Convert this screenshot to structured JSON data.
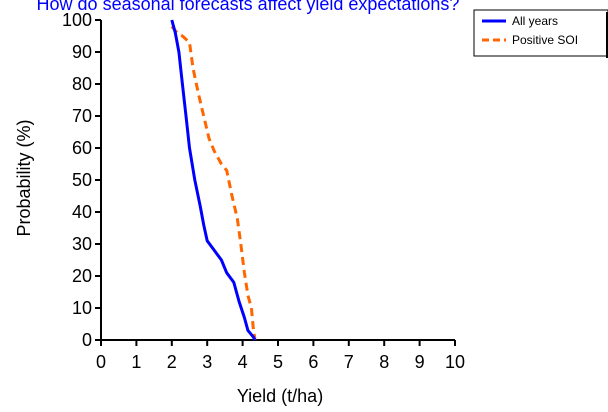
{
  "chart_data": {
    "type": "line",
    "title": "How do seasonal forecasts affect yield expectations?",
    "xlabel": "Yield (t/ha)",
    "ylabel": "Probability (%)",
    "xlim": [
      0,
      10
    ],
    "ylim": [
      0,
      100
    ],
    "x_ticks": [
      "0",
      "1",
      "2",
      "3",
      "4",
      "5",
      "6",
      "7",
      "8",
      "9",
      "10"
    ],
    "y_ticks": [
      "0",
      "10",
      "20",
      "30",
      "40",
      "50",
      "60",
      "70",
      "80",
      "90",
      "100"
    ],
    "grid": false,
    "legend_position": "top-right",
    "series": [
      {
        "name": "All years",
        "color": "#0000ff",
        "style": "solid",
        "points": [
          [
            2.0,
            100
          ],
          [
            2.1,
            96
          ],
          [
            2.2,
            90
          ],
          [
            2.3,
            80
          ],
          [
            2.4,
            70
          ],
          [
            2.5,
            60
          ],
          [
            2.65,
            50
          ],
          [
            2.8,
            42
          ],
          [
            2.9,
            36
          ],
          [
            3.0,
            31
          ],
          [
            3.2,
            28
          ],
          [
            3.4,
            25
          ],
          [
            3.55,
            21
          ],
          [
            3.75,
            18
          ],
          [
            3.9,
            12
          ],
          [
            4.05,
            7
          ],
          [
            4.15,
            3
          ],
          [
            4.3,
            1
          ],
          [
            4.35,
            0
          ]
        ]
      },
      {
        "name": "Positive SOI",
        "color": "#ff6600",
        "style": "dashed",
        "points": [
          [
            2.0,
            98
          ],
          [
            2.15,
            96
          ],
          [
            2.3,
            95
          ],
          [
            2.5,
            93
          ],
          [
            2.6,
            85
          ],
          [
            2.75,
            77
          ],
          [
            2.9,
            70
          ],
          [
            3.05,
            63
          ],
          [
            3.2,
            59
          ],
          [
            3.4,
            55
          ],
          [
            3.55,
            53
          ],
          [
            3.7,
            45
          ],
          [
            3.85,
            38
          ],
          [
            3.95,
            30
          ],
          [
            4.05,
            21
          ],
          [
            4.15,
            14
          ],
          [
            4.25,
            10
          ],
          [
            4.3,
            4
          ],
          [
            4.35,
            0
          ]
        ]
      }
    ]
  }
}
